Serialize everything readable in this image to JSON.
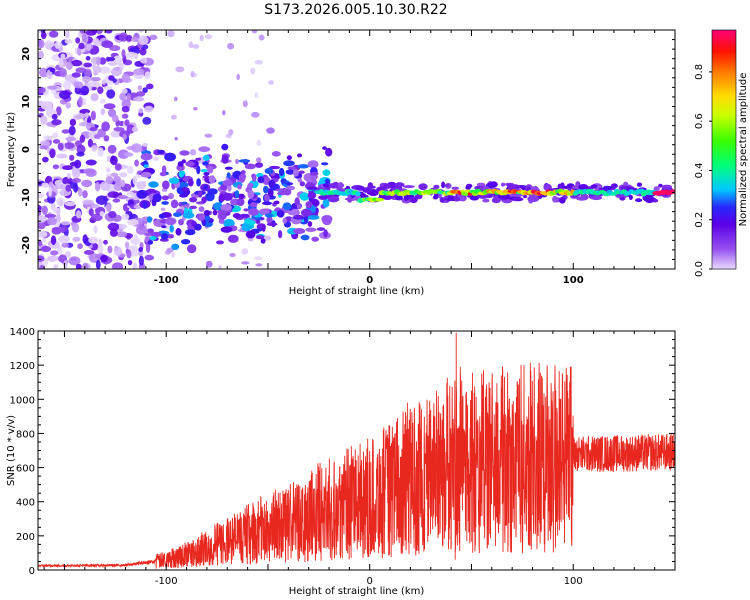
{
  "title": "S173.2026.005.10.30.R22",
  "chart_data": [
    {
      "type": "heatmap",
      "xlabel": "Height of straight line (km)",
      "ylabel": "Frequency (Hz)",
      "xlim": [
        -163,
        150
      ],
      "ylim": [
        -25,
        25
      ],
      "xticks": [
        -100,
        0,
        100
      ],
      "yticks": [
        -20,
        -10,
        0,
        10,
        20
      ],
      "colorbar": {
        "label": "Normalized spectral amplitude",
        "range": [
          0,
          0.97
        ],
        "ticks": [
          0,
          0.2,
          0.4,
          0.6,
          0.8
        ],
        "tick_labels": [
          "0.0",
          "0.2",
          "0.4",
          "0.6",
          "0.8"
        ]
      },
      "features": {
        "noise_region_x": [
          -163,
          -108
        ],
        "scattered_region_x": [
          -112,
          -20
        ],
        "tone_start_x": -25,
        "tone_frequency_hz": -9,
        "tone_dip": {
          "x": 0,
          "frequency_hz": -10.5
        }
      }
    },
    {
      "type": "line",
      "xlabel": "Height of straight line (km)",
      "ylabel": "SNR (10 * v/v)",
      "xlim": [
        -163,
        150
      ],
      "ylim": [
        0,
        1400
      ],
      "xticks": [
        -100,
        0,
        100
      ],
      "yticks": [
        0,
        200,
        400,
        600,
        800,
        1000,
        1200,
        1400
      ],
      "series": [
        {
          "name": "SNR",
          "color": "#e8281f",
          "envelope_x": [
            -163,
            -120,
            -100,
            -80,
            -60,
            -40,
            -20,
            0,
            20,
            40,
            60,
            80,
            100,
            110,
            150
          ],
          "envelope_y": [
            25,
            28,
            60,
            130,
            210,
            280,
            360,
            420,
            520,
            620,
            640,
            660,
            680,
            680,
            690
          ],
          "spikes": [
            {
              "x": 42.5,
              "y": 1390
            },
            {
              "x": 44.5,
              "y": 1190
            },
            {
              "x": 18.5,
              "y": 980
            },
            {
              "x": 50,
              "y": 1050
            },
            {
              "x": 60,
              "y": 1020
            },
            {
              "x": 65,
              "y": 990
            },
            {
              "x": 70,
              "y": 970
            },
            {
              "x": 88,
              "y": 960
            },
            {
              "x": 92,
              "y": 950
            },
            {
              "x": 32,
              "y": 900
            },
            {
              "x": 36,
              "y": 960
            },
            {
              "x": 28,
              "y": 850
            },
            {
              "x": 42,
              "y": 60
            },
            {
              "x": 68,
              "y": 140
            }
          ]
        }
      ]
    }
  ]
}
